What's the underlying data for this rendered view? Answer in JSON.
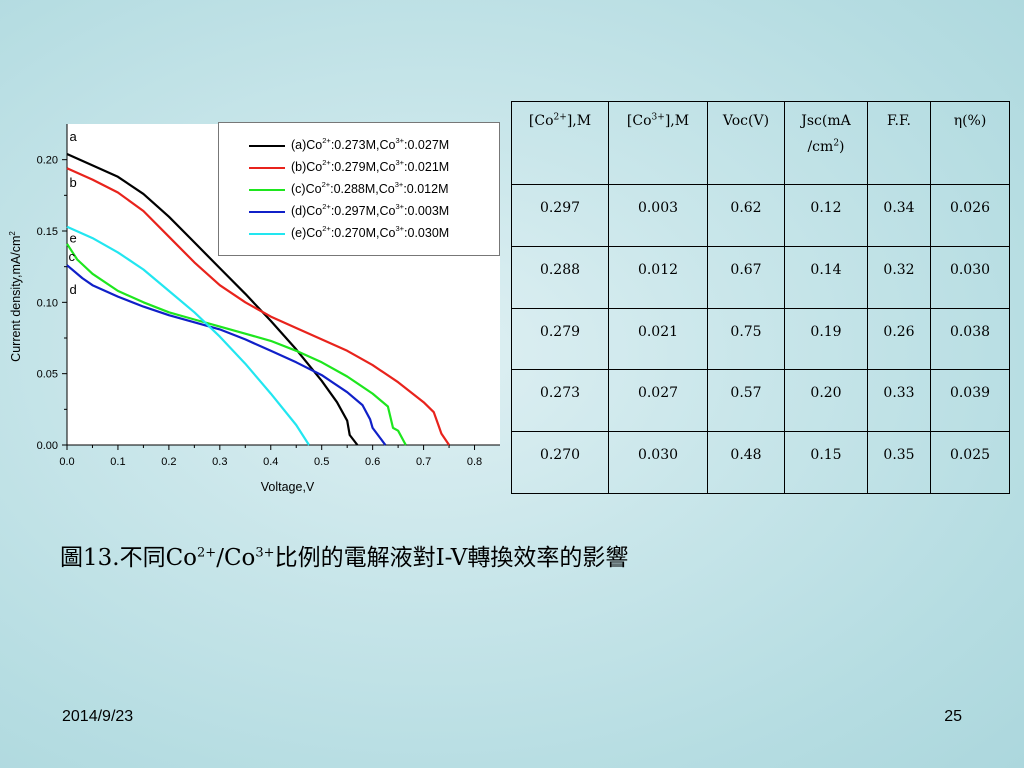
{
  "chart_data": {
    "type": "line",
    "xlabel": "Voltage,V",
    "ylabel": "Current density,mA/cm",
    "ylabel_sup": "2",
    "xlim": [
      0.0,
      0.85
    ],
    "ylim": [
      0.0,
      0.225
    ],
    "x_ticks": [
      "0.0",
      "0.1",
      "0.2",
      "0.3",
      "0.4",
      "0.5",
      "0.6",
      "0.7",
      "0.8"
    ],
    "y_ticks": [
      "0.00",
      "0.05",
      "0.10",
      "0.15",
      "0.20"
    ],
    "legend_position": "top-right",
    "series": [
      {
        "id": "a",
        "color": "#000000",
        "label_parts": [
          "(a)Co",
          "2+",
          ":0.273M,Co",
          "3+",
          ":0.027M"
        ],
        "points": [
          [
            0.0,
            0.204
          ],
          [
            0.05,
            0.196
          ],
          [
            0.1,
            0.188
          ],
          [
            0.15,
            0.176
          ],
          [
            0.2,
            0.16
          ],
          [
            0.25,
            0.142
          ],
          [
            0.3,
            0.124
          ],
          [
            0.35,
            0.106
          ],
          [
            0.4,
            0.087
          ],
          [
            0.45,
            0.067
          ],
          [
            0.5,
            0.045
          ],
          [
            0.53,
            0.03
          ],
          [
            0.55,
            0.017
          ],
          [
            0.555,
            0.007
          ],
          [
            0.57,
            0.0
          ]
        ]
      },
      {
        "id": "b",
        "color": "#e8231c",
        "label_parts": [
          "(b)Co",
          "2+",
          ":0.279M,Co",
          "3+",
          ":0.021M"
        ],
        "points": [
          [
            0.0,
            0.194
          ],
          [
            0.05,
            0.186
          ],
          [
            0.1,
            0.177
          ],
          [
            0.15,
            0.164
          ],
          [
            0.2,
            0.146
          ],
          [
            0.25,
            0.128
          ],
          [
            0.3,
            0.112
          ],
          [
            0.35,
            0.1
          ],
          [
            0.4,
            0.09
          ],
          [
            0.45,
            0.082
          ],
          [
            0.5,
            0.074
          ],
          [
            0.55,
            0.066
          ],
          [
            0.6,
            0.056
          ],
          [
            0.65,
            0.044
          ],
          [
            0.7,
            0.03
          ],
          [
            0.72,
            0.023
          ],
          [
            0.73,
            0.013
          ],
          [
            0.735,
            0.008
          ],
          [
            0.75,
            0.0
          ]
        ]
      },
      {
        "id": "c",
        "color": "#1ee61e",
        "label_parts": [
          "(c)Co",
          "2+",
          ":0.288M,Co",
          "3+",
          ":0.012M"
        ],
        "points": [
          [
            0.0,
            0.141
          ],
          [
            0.02,
            0.13
          ],
          [
            0.05,
            0.12
          ],
          [
            0.1,
            0.108
          ],
          [
            0.15,
            0.1
          ],
          [
            0.2,
            0.093
          ],
          [
            0.25,
            0.088
          ],
          [
            0.3,
            0.083
          ],
          [
            0.35,
            0.078
          ],
          [
            0.4,
            0.073
          ],
          [
            0.45,
            0.066
          ],
          [
            0.5,
            0.058
          ],
          [
            0.55,
            0.048
          ],
          [
            0.6,
            0.036
          ],
          [
            0.63,
            0.027
          ],
          [
            0.64,
            0.012
          ],
          [
            0.65,
            0.01
          ],
          [
            0.665,
            0.0
          ]
        ]
      },
      {
        "id": "d",
        "color": "#1020c8",
        "label_parts": [
          "(d)Co",
          "2+",
          ":0.297M,Co",
          "3+",
          ":0.003M"
        ],
        "points": [
          [
            0.0,
            0.126
          ],
          [
            0.03,
            0.117
          ],
          [
            0.05,
            0.112
          ],
          [
            0.1,
            0.104
          ],
          [
            0.15,
            0.097
          ],
          [
            0.2,
            0.091
          ],
          [
            0.25,
            0.086
          ],
          [
            0.3,
            0.081
          ],
          [
            0.35,
            0.074
          ],
          [
            0.4,
            0.066
          ],
          [
            0.45,
            0.058
          ],
          [
            0.5,
            0.049
          ],
          [
            0.55,
            0.037
          ],
          [
            0.58,
            0.028
          ],
          [
            0.595,
            0.018
          ],
          [
            0.6,
            0.012
          ],
          [
            0.625,
            0.0
          ]
        ]
      },
      {
        "id": "e",
        "color": "#22e6f0",
        "label_parts": [
          "(e)Co",
          "2+",
          ":0.270M,Co",
          "3+",
          ":0.030M"
        ],
        "points": [
          [
            0.0,
            0.153
          ],
          [
            0.05,
            0.145
          ],
          [
            0.1,
            0.135
          ],
          [
            0.15,
            0.123
          ],
          [
            0.2,
            0.108
          ],
          [
            0.25,
            0.093
          ],
          [
            0.3,
            0.076
          ],
          [
            0.35,
            0.057
          ],
          [
            0.4,
            0.036
          ],
          [
            0.45,
            0.014
          ],
          [
            0.475,
            0.0
          ]
        ]
      }
    ],
    "curve_labels": [
      {
        "text": "a",
        "x": 0.005,
        "y": 0.213
      },
      {
        "text": "b",
        "x": 0.005,
        "y": 0.181
      },
      {
        "text": "e",
        "x": 0.005,
        "y": 0.142
      },
      {
        "text": "c",
        "x": 0.003,
        "y": 0.129
      },
      {
        "text": "d",
        "x": 0.005,
        "y": 0.106
      }
    ]
  },
  "table": {
    "headers": [
      {
        "pre": "[Co",
        "sup": "2+",
        "post": "],M"
      },
      {
        "pre": "[Co",
        "sup": "3+",
        "post": "],M"
      },
      {
        "pre": "Voc(V)",
        "sup": "",
        "post": ""
      },
      {
        "pre": "Jsc(mA",
        "line2_pre": "/cm",
        "line2_sup": "2",
        "line2_post": ")"
      },
      {
        "pre": "F.F.",
        "sup": "",
        "post": ""
      },
      {
        "pre": "η(%)",
        "sup": "",
        "post": ""
      }
    ],
    "rows": [
      [
        "0.297",
        "0.003",
        "0.62",
        "0.12",
        "0.34",
        "0.026"
      ],
      [
        "0.288",
        "0.012",
        "0.67",
        "0.14",
        "0.32",
        "0.030"
      ],
      [
        "0.279",
        "0.021",
        "0.75",
        "0.19",
        "0.26",
        "0.038"
      ],
      [
        "0.273",
        "0.027",
        "0.57",
        "0.20",
        "0.33",
        "0.039"
      ],
      [
        "0.270",
        "0.030",
        "0.48",
        "0.15",
        "0.35",
        "0.025"
      ]
    ]
  },
  "caption": {
    "part1": "圖13.不同Co",
    "sup1": "2+",
    "part2": "/Co",
    "sup2": "3+",
    "part3": "比例的電解液對I-V轉換效率的影響"
  },
  "footer": {
    "date": "2014/9/23",
    "page": "25"
  }
}
